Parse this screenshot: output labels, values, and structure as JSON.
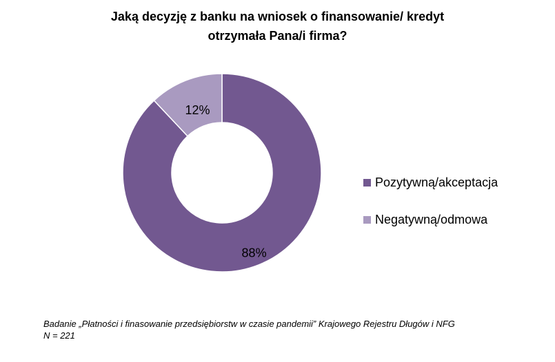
{
  "title": {
    "line1": "Jaką decyzję z banku na wniosek o finansowanie/ kredyt",
    "line2": "otrzymała Pana/i firma?"
  },
  "chart_data": {
    "type": "pie",
    "variant": "donut",
    "categories": [
      "Pozytywną/akceptacja",
      "Negatywną/odmowa"
    ],
    "values": [
      88,
      12
    ],
    "data_labels": [
      "88%",
      "12%"
    ],
    "colors": [
      "#725890",
      "#a99ac0"
    ],
    "legend_position": "right"
  },
  "legend": [
    {
      "label": "Pozytywną/akceptacja",
      "color": "#725890"
    },
    {
      "label": "Negatywną/odmowa",
      "color": "#a99ac0"
    }
  ],
  "footer": {
    "source": "Badanie „Płatności i finasowanie przedsiębiorstw w czasie pandemii” Krajowego Rejestru Długów i NFG",
    "sample": "N = 221"
  }
}
